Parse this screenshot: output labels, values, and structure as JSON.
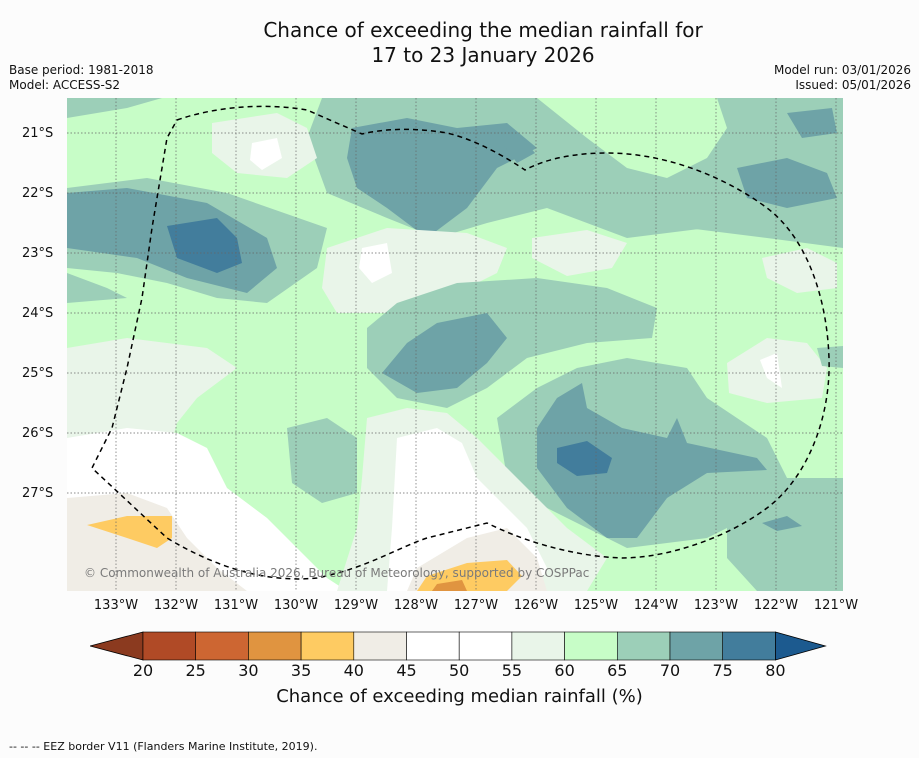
{
  "title": {
    "line1": "Chance of exceeding the median rainfall for",
    "line2": "17 to 23 January 2026"
  },
  "meta": {
    "base_period": "Base period: 1981-2018",
    "model": "Model: ACCESS-S2",
    "model_run": "Model run: 03/01/2026",
    "issued": "Issued: 05/01/2026"
  },
  "map": {
    "lat_labels": [
      "21°S",
      "22°S",
      "23°S",
      "24°S",
      "25°S",
      "26°S",
      "27°S"
    ],
    "lon_labels": [
      "133°W",
      "132°W",
      "131°W",
      "130°W",
      "129°W",
      "128°W",
      "127°W",
      "126°W",
      "125°W",
      "124°W",
      "123°W",
      "122°W",
      "121°W"
    ],
    "copyright": "© Commonwealth of Australia 2026, Bureau of Meteorology, supported by COSPPac"
  },
  "colorbar": {
    "ticks": [
      "20",
      "25",
      "30",
      "35",
      "40",
      "45",
      "50",
      "55",
      "60",
      "65",
      "70",
      "75",
      "80"
    ],
    "colors": [
      "#8b3a1f",
      "#b04a26",
      "#cd6632",
      "#e09440",
      "#fecb62",
      "#f0ede6",
      "#ffffff",
      "#ffffff",
      "#e9f5e9",
      "#c7fdc7",
      "#9ccfb8",
      "#6ea3a7",
      "#427d9c",
      "#1c5a8f"
    ],
    "label": "Chance of exceeding median rainfall (%)"
  },
  "footer": "--  --  -- EEZ border V11 (Flanders Marine Institute, 2019)."
}
